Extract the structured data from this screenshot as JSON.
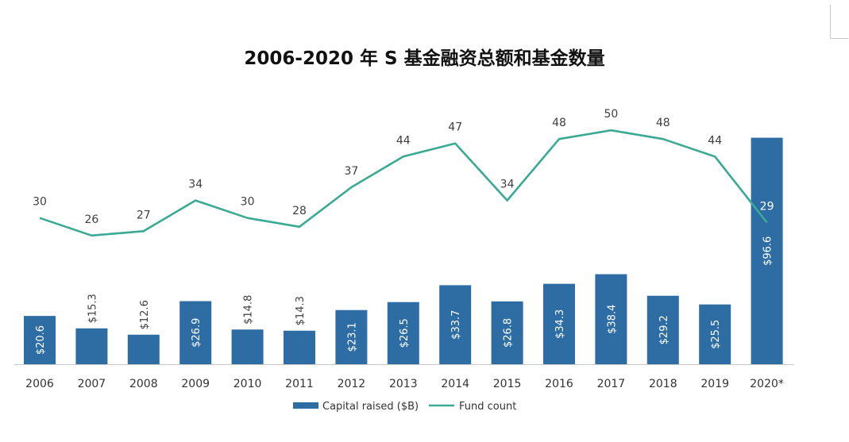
{
  "chart_data": {
    "type": "bar+line",
    "title": "2006-2020 年 S 基金融资总额和基金数量",
    "categories": [
      "2006",
      "2007",
      "2008",
      "2009",
      "2010",
      "2011",
      "2012",
      "2013",
      "2014",
      "2015",
      "2016",
      "2017",
      "2018",
      "2019",
      "2020*"
    ],
    "series": [
      {
        "name": "Capital raised ($B)",
        "type": "bar",
        "color": "#2e6ca4",
        "values": [
          20.6,
          15.3,
          12.6,
          26.9,
          14.8,
          14.3,
          23.1,
          26.5,
          33.7,
          26.8,
          34.3,
          38.4,
          29.2,
          25.5,
          96.6
        ],
        "labels": [
          "$20.6",
          "$15.3",
          "$12.6",
          "$26.9",
          "$14.8",
          "$14.3",
          "$23.1",
          "$26.5",
          "$33.7",
          "$26.8",
          "$34.3",
          "$38.4",
          "$29.2",
          "$25.5",
          "$96.6"
        ]
      },
      {
        "name": "Fund count",
        "type": "line",
        "color": "#3aaa94",
        "values": [
          30,
          26,
          27,
          34,
          30,
          28,
          37,
          44,
          47,
          34,
          48,
          50,
          48,
          44,
          29
        ],
        "labels": [
          "30",
          "26",
          "27",
          "34",
          "30",
          "28",
          "37",
          "44",
          "47",
          "34",
          "48",
          "50",
          "48",
          "44",
          "29"
        ]
      }
    ],
    "legend": "bottom-center",
    "grid": false
  }
}
